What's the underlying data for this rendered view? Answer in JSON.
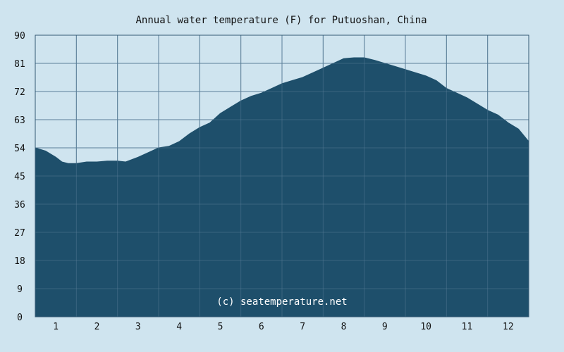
{
  "chart_data": {
    "type": "area",
    "title": "Annual water temperature (F) for Putuoshan, China",
    "xlabel": "",
    "ylabel": "",
    "ylim": [
      0,
      90
    ],
    "yticks": [
      0,
      9,
      18,
      27,
      36,
      45,
      54,
      63,
      72,
      81,
      90
    ],
    "xlim": [
      0.5,
      12.5
    ],
    "xticks": [
      1,
      2,
      3,
      4,
      5,
      6,
      7,
      8,
      9,
      10,
      11,
      12
    ],
    "grid": true,
    "watermark": "(c) seatemperature.net",
    "colors": {
      "fill": "#1e4f6b",
      "grid": "#5b7f98",
      "background": "#cfe4ef",
      "plot_border": "#345a74"
    },
    "x": [
      0.5,
      0.75,
      1.0,
      1.15,
      1.3,
      1.5,
      1.75,
      2.0,
      2.25,
      2.5,
      2.7,
      3.0,
      3.25,
      3.5,
      3.75,
      4.0,
      4.25,
      4.5,
      4.75,
      5.0,
      5.25,
      5.5,
      5.75,
      6.0,
      6.25,
      6.5,
      6.75,
      7.0,
      7.25,
      7.5,
      7.75,
      8.0,
      8.25,
      8.5,
      8.75,
      9.0,
      9.25,
      9.5,
      9.75,
      10.0,
      10.25,
      10.5,
      10.75,
      11.0,
      11.25,
      11.5,
      11.75,
      12.0,
      12.25,
      12.5
    ],
    "values": [
      54,
      53,
      51,
      49.5,
      49,
      49,
      49.5,
      49.5,
      49.8,
      49.8,
      49.5,
      51,
      52.5,
      54,
      54.5,
      56,
      58.5,
      60.5,
      62,
      65,
      67,
      69,
      70.5,
      71.5,
      73,
      74.5,
      75.5,
      76.5,
      78,
      79.5,
      81,
      82.5,
      82.8,
      82.8,
      82,
      81,
      80,
      79,
      78,
      77,
      75.5,
      73,
      71.5,
      70,
      68,
      66,
      64.5,
      62,
      60,
      56
    ]
  }
}
